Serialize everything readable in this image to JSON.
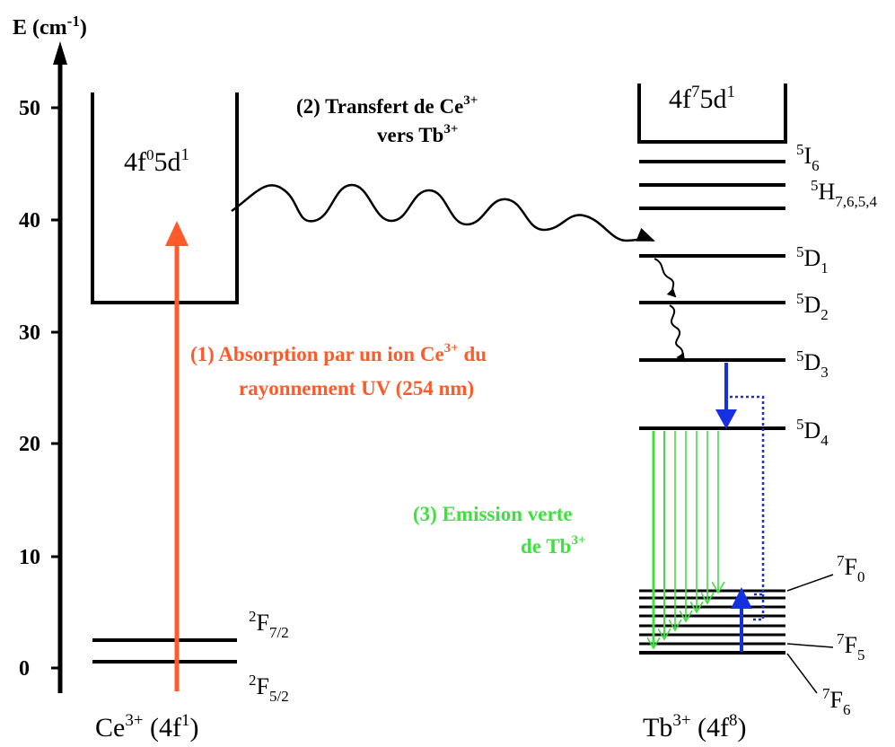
{
  "axis": {
    "label_main": "E (cm",
    "label_exp": "-1",
    "label_close": ")",
    "ticks": [
      "50",
      "40",
      "30",
      "20",
      "10",
      "0"
    ]
  },
  "ce": {
    "band_base": "4f",
    "band_sup1": "0",
    "band_mid": "5d",
    "band_sup2": "1",
    "f72_sup": "2",
    "f72_main": "F",
    "f72_sub": "7/2",
    "f52_sup": "2",
    "f52_main": "F",
    "f52_sub": "5/2",
    "ion_main": "Ce",
    "ion_sup": "3+",
    "ion_cfg_open": " (4f",
    "ion_cfg_sup": "1",
    "ion_cfg_close": ")"
  },
  "tb": {
    "band_base": "4f",
    "band_sup1": "7",
    "band_mid": "5d",
    "band_sup2": "1",
    "levels": {
      "i6": {
        "sup": "5",
        "main": "I",
        "sub": "6"
      },
      "h": {
        "sup": "5",
        "main": "H",
        "sub": "7,6,5,4"
      },
      "d1": {
        "sup": "5",
        "main": "D",
        "sub": "1"
      },
      "d2": {
        "sup": "5",
        "main": "D",
        "sub": "2"
      },
      "d3": {
        "sup": "5",
        "main": "D",
        "sub": "3"
      },
      "d4": {
        "sup": "5",
        "main": "D",
        "sub": "4"
      },
      "f0": {
        "sup": "7",
        "main": "F",
        "sub": "0"
      },
      "f5": {
        "sup": "7",
        "main": "F",
        "sub": "5"
      },
      "f6": {
        "sup": "7",
        "main": "F",
        "sub": "6"
      }
    },
    "ion_main": "Tb",
    "ion_sup": "3+",
    "ion_cfg_open": " (4f",
    "ion_cfg_sup": "8",
    "ion_cfg_close": ")"
  },
  "steps": {
    "transfer_line1_main": "(2) Transfert de Ce",
    "transfer_line1_sup": "3+",
    "transfer_line2_main": "vers Tb",
    "transfer_line2_sup": "3+",
    "absorption_line1_main": "(1) Absorption par un ion Ce",
    "absorption_line1_sup": "3+",
    "absorption_line1_end": " du",
    "absorption_line2": "rayonnement UV (254 nm)",
    "emission_line1": "(3) Emission verte",
    "emission_line2_main": "de Tb",
    "emission_line2_sup": "3+"
  },
  "colors": {
    "absorption": "#ff5a2a",
    "emission": "#3fe03f",
    "relaxation": "#1430e0",
    "levels": "#000000"
  }
}
